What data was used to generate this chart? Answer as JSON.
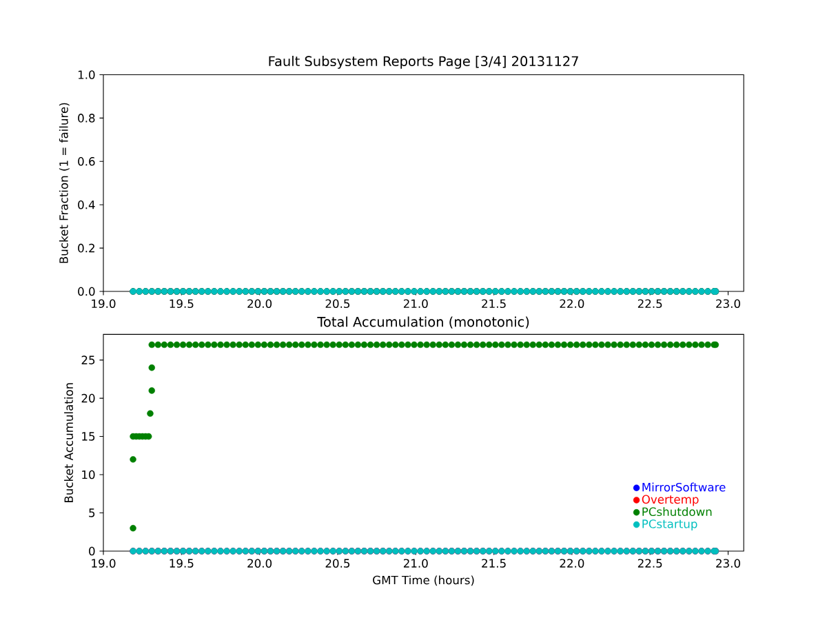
{
  "chart_data": [
    {
      "type": "scatter",
      "title": "Fault Subsystem Reports Page [3/4] 20131127",
      "ylabel": "Bucket Fraction (1 = failure)",
      "marker": "circle",
      "legend": false,
      "grid": false,
      "xlim": [
        19.0,
        23.1
      ],
      "ylim": [
        0,
        1
      ],
      "xticks": [
        {
          "value": 19.0,
          "label": "19.0"
        },
        {
          "value": 19.5,
          "label": "19.5"
        },
        {
          "value": 20.0,
          "label": "20.0"
        },
        {
          "value": 20.5,
          "label": "20.5"
        },
        {
          "value": 21.0,
          "label": "21.0"
        },
        {
          "value": 21.5,
          "label": "21.5"
        },
        {
          "value": 22.0,
          "label": "22.0"
        },
        {
          "value": 22.5,
          "label": "22.5"
        },
        {
          "value": 23.0,
          "label": "23.0"
        }
      ],
      "yticks": [
        {
          "value": 0,
          "label": "0.0"
        },
        {
          "value": 0.2,
          "label": "0.2"
        },
        {
          "value": 0.4,
          "label": "0.4"
        },
        {
          "value": 0.6,
          "label": "0.6"
        },
        {
          "value": 0.8,
          "label": "0.8"
        },
        {
          "value": 1,
          "label": "1.0"
        }
      ],
      "x": [
        19.19,
        19.23,
        19.27,
        19.31,
        19.35,
        19.39,
        19.43,
        19.47,
        19.51,
        19.55,
        19.59,
        19.63,
        19.67,
        19.71,
        19.75,
        19.79,
        19.83,
        19.87,
        19.91,
        19.95,
        19.99,
        20.03,
        20.07,
        20.11,
        20.15,
        20.19,
        20.23,
        20.27,
        20.31,
        20.35,
        20.39,
        20.43,
        20.47,
        20.51,
        20.55,
        20.59,
        20.63,
        20.67,
        20.71,
        20.75,
        20.79,
        20.83,
        20.87,
        20.91,
        20.95,
        20.99,
        21.03,
        21.07,
        21.11,
        21.15,
        21.19,
        21.23,
        21.27,
        21.31,
        21.35,
        21.39,
        21.43,
        21.47,
        21.51,
        21.55,
        21.59,
        21.63,
        21.67,
        21.71,
        21.75,
        21.79,
        21.83,
        21.87,
        21.91,
        21.95,
        21.99,
        22.03,
        22.07,
        22.11,
        22.15,
        22.19,
        22.23,
        22.27,
        22.31,
        22.35,
        22.39,
        22.43,
        22.47,
        22.51,
        22.55,
        22.59,
        22.63,
        22.67,
        22.71,
        22.75,
        22.79,
        22.83,
        22.87,
        22.91,
        22.92
      ],
      "series": [
        {
          "color": "#0000ff",
          "values": [
            0,
            0,
            0,
            0,
            0,
            0,
            0,
            0,
            0,
            0,
            0,
            0,
            0,
            0,
            0,
            0,
            0,
            0,
            0,
            0,
            0,
            0,
            0,
            0,
            0,
            0,
            0,
            0,
            0,
            0,
            0,
            0,
            0,
            0,
            0,
            0,
            0,
            0,
            0,
            0,
            0,
            0,
            0,
            0,
            0,
            0,
            0,
            0,
            0,
            0,
            0,
            0,
            0,
            0,
            0,
            0,
            0,
            0,
            0,
            0,
            0,
            0,
            0,
            0,
            0,
            0,
            0,
            0,
            0,
            0,
            0,
            0,
            0,
            0,
            0,
            0,
            0,
            0,
            0,
            0,
            0,
            0,
            0,
            0,
            0,
            0,
            0,
            0,
            0,
            0,
            0,
            0,
            0,
            0,
            0
          ]
        },
        {
          "color": "#ff0000",
          "values": [
            0,
            0,
            0,
            0,
            0,
            0,
            0,
            0,
            0,
            0,
            0,
            0,
            0,
            0,
            0,
            0,
            0,
            0,
            0,
            0,
            0,
            0,
            0,
            0,
            0,
            0,
            0,
            0,
            0,
            0,
            0,
            0,
            0,
            0,
            0,
            0,
            0,
            0,
            0,
            0,
            0,
            0,
            0,
            0,
            0,
            0,
            0,
            0,
            0,
            0,
            0,
            0,
            0,
            0,
            0,
            0,
            0,
            0,
            0,
            0,
            0,
            0,
            0,
            0,
            0,
            0,
            0,
            0,
            0,
            0,
            0,
            0,
            0,
            0,
            0,
            0,
            0,
            0,
            0,
            0,
            0,
            0,
            0,
            0,
            0,
            0,
            0,
            0,
            0,
            0,
            0,
            0,
            0,
            0,
            0
          ]
        },
        {
          "color": "#008000",
          "values": [
            0,
            0,
            0,
            0,
            0,
            0,
            0,
            0,
            0,
            0,
            0,
            0,
            0,
            0,
            0,
            0,
            0,
            0,
            0,
            0,
            0,
            0,
            0,
            0,
            0,
            0,
            0,
            0,
            0,
            0,
            0,
            0,
            0,
            0,
            0,
            0,
            0,
            0,
            0,
            0,
            0,
            0,
            0,
            0,
            0,
            0,
            0,
            0,
            0,
            0,
            0,
            0,
            0,
            0,
            0,
            0,
            0,
            0,
            0,
            0,
            0,
            0,
            0,
            0,
            0,
            0,
            0,
            0,
            0,
            0,
            0,
            0,
            0,
            0,
            0,
            0,
            0,
            0,
            0,
            0,
            0,
            0,
            0,
            0,
            0,
            0,
            0,
            0,
            0,
            0,
            0,
            0,
            0,
            0,
            0
          ]
        },
        {
          "color": "#00bfbf",
          "values": [
            0,
            0,
            0,
            0,
            0,
            0,
            0,
            0,
            0,
            0,
            0,
            0,
            0,
            0,
            0,
            0,
            0,
            0,
            0,
            0,
            0,
            0,
            0,
            0,
            0,
            0,
            0,
            0,
            0,
            0,
            0,
            0,
            0,
            0,
            0,
            0,
            0,
            0,
            0,
            0,
            0,
            0,
            0,
            0,
            0,
            0,
            0,
            0,
            0,
            0,
            0,
            0,
            0,
            0,
            0,
            0,
            0,
            0,
            0,
            0,
            0,
            0,
            0,
            0,
            0,
            0,
            0,
            0,
            0,
            0,
            0,
            0,
            0,
            0,
            0,
            0,
            0,
            0,
            0,
            0,
            0,
            0,
            0,
            0,
            0,
            0,
            0,
            0,
            0,
            0,
            0,
            0,
            0,
            0,
            0
          ]
        }
      ]
    },
    {
      "type": "scatter",
      "title": "Total Accumulation (monotonic)",
      "xlabel": "GMT Time (hours)",
      "ylabel": "Bucket Accumulation",
      "marker": "circle",
      "legend": "bottom right",
      "grid": false,
      "xlim": [
        19.0,
        23.1
      ],
      "ylim": [
        0,
        28.35
      ],
      "xticks": [
        {
          "value": 19.0,
          "label": "19.0"
        },
        {
          "value": 19.5,
          "label": "19.5"
        },
        {
          "value": 20.0,
          "label": "20.0"
        },
        {
          "value": 20.5,
          "label": "20.5"
        },
        {
          "value": 21.0,
          "label": "21.0"
        },
        {
          "value": 21.5,
          "label": "21.5"
        },
        {
          "value": 22.0,
          "label": "22.0"
        },
        {
          "value": 22.5,
          "label": "22.5"
        },
        {
          "value": 23.0,
          "label": "23.0"
        }
      ],
      "yticks": [
        0,
        5,
        10,
        15,
        20,
        25
      ],
      "x": [
        19.19,
        19.23,
        19.27,
        19.31,
        19.35,
        19.39,
        19.43,
        19.47,
        19.51,
        19.55,
        19.59,
        19.63,
        19.67,
        19.71,
        19.75,
        19.79,
        19.83,
        19.87,
        19.91,
        19.95,
        19.99,
        20.03,
        20.07,
        20.11,
        20.15,
        20.19,
        20.23,
        20.27,
        20.31,
        20.35,
        20.39,
        20.43,
        20.47,
        20.51,
        20.55,
        20.59,
        20.63,
        20.67,
        20.71,
        20.75,
        20.79,
        20.83,
        20.87,
        20.91,
        20.95,
        20.99,
        21.03,
        21.07,
        21.11,
        21.15,
        21.19,
        21.23,
        21.27,
        21.31,
        21.35,
        21.39,
        21.43,
        21.47,
        21.51,
        21.55,
        21.59,
        21.63,
        21.67,
        21.71,
        21.75,
        21.79,
        21.83,
        21.87,
        21.91,
        21.95,
        21.99,
        22.03,
        22.07,
        22.11,
        22.15,
        22.19,
        22.23,
        22.27,
        22.31,
        22.35,
        22.39,
        22.43,
        22.47,
        22.51,
        22.55,
        22.59,
        22.63,
        22.67,
        22.71,
        22.75,
        22.79,
        22.83,
        22.87,
        22.91,
        22.92
      ],
      "series": [
        {
          "name": "MirrorSoftware",
          "color": "#0000ff",
          "values": [
            0,
            0,
            0,
            0,
            0,
            0,
            0,
            0,
            0,
            0,
            0,
            0,
            0,
            0,
            0,
            0,
            0,
            0,
            0,
            0,
            0,
            0,
            0,
            0,
            0,
            0,
            0,
            0,
            0,
            0,
            0,
            0,
            0,
            0,
            0,
            0,
            0,
            0,
            0,
            0,
            0,
            0,
            0,
            0,
            0,
            0,
            0,
            0,
            0,
            0,
            0,
            0,
            0,
            0,
            0,
            0,
            0,
            0,
            0,
            0,
            0,
            0,
            0,
            0,
            0,
            0,
            0,
            0,
            0,
            0,
            0,
            0,
            0,
            0,
            0,
            0,
            0,
            0,
            0,
            0,
            0,
            0,
            0,
            0,
            0,
            0,
            0,
            0,
            0,
            0,
            0,
            0,
            0,
            0,
            0
          ]
        },
        {
          "name": "Overtemp",
          "color": "#ff0000",
          "values": [
            0,
            0,
            0,
            0,
            0,
            0,
            0,
            0,
            0,
            0,
            0,
            0,
            0,
            0,
            0,
            0,
            0,
            0,
            0,
            0,
            0,
            0,
            0,
            0,
            0,
            0,
            0,
            0,
            0,
            0,
            0,
            0,
            0,
            0,
            0,
            0,
            0,
            0,
            0,
            0,
            0,
            0,
            0,
            0,
            0,
            0,
            0,
            0,
            0,
            0,
            0,
            0,
            0,
            0,
            0,
            0,
            0,
            0,
            0,
            0,
            0,
            0,
            0,
            0,
            0,
            0,
            0,
            0,
            0,
            0,
            0,
            0,
            0,
            0,
            0,
            0,
            0,
            0,
            0,
            0,
            0,
            0,
            0,
            0,
            0,
            0,
            0,
            0,
            0,
            0,
            0,
            0,
            0,
            0,
            0
          ]
        },
        {
          "name": "PCshutdown",
          "color": "#008000",
          "x": [
            19.19,
            19.19,
            19.19,
            19.21,
            19.23,
            19.25,
            19.27,
            19.29,
            19.3,
            19.31,
            19.31,
            19.31,
            19.35,
            19.39,
            19.43,
            19.47,
            19.51,
            19.55,
            19.59,
            19.63,
            19.67,
            19.71,
            19.75,
            19.79,
            19.83,
            19.87,
            19.91,
            19.95,
            19.99,
            20.03,
            20.07,
            20.11,
            20.15,
            20.19,
            20.23,
            20.27,
            20.31,
            20.35,
            20.39,
            20.43,
            20.47,
            20.51,
            20.55,
            20.59,
            20.63,
            20.67,
            20.71,
            20.75,
            20.79,
            20.83,
            20.87,
            20.91,
            20.95,
            20.99,
            21.03,
            21.07,
            21.11,
            21.15,
            21.19,
            21.23,
            21.27,
            21.31,
            21.35,
            21.39,
            21.43,
            21.47,
            21.51,
            21.55,
            21.59,
            21.63,
            21.67,
            21.71,
            21.75,
            21.79,
            21.83,
            21.87,
            21.91,
            21.95,
            21.99,
            22.03,
            22.07,
            22.11,
            22.15,
            22.19,
            22.23,
            22.27,
            22.31,
            22.35,
            22.39,
            22.43,
            22.47,
            22.51,
            22.55,
            22.59,
            22.63,
            22.67,
            22.71,
            22.75,
            22.79,
            22.83,
            22.87,
            22.91,
            22.92
          ],
          "values": [
            3,
            12,
            15,
            15,
            15,
            15,
            15,
            15,
            18,
            21,
            24,
            27,
            27,
            27,
            27,
            27,
            27,
            27,
            27,
            27,
            27,
            27,
            27,
            27,
            27,
            27,
            27,
            27,
            27,
            27,
            27,
            27,
            27,
            27,
            27,
            27,
            27,
            27,
            27,
            27,
            27,
            27,
            27,
            27,
            27,
            27,
            27,
            27,
            27,
            27,
            27,
            27,
            27,
            27,
            27,
            27,
            27,
            27,
            27,
            27,
            27,
            27,
            27,
            27,
            27,
            27,
            27,
            27,
            27,
            27,
            27,
            27,
            27,
            27,
            27,
            27,
            27,
            27,
            27,
            27,
            27,
            27,
            27,
            27,
            27,
            27,
            27,
            27,
            27,
            27,
            27,
            27,
            27,
            27,
            27,
            27,
            27,
            27,
            27,
            27,
            27,
            27,
            27
          ]
        },
        {
          "name": "PCstartup",
          "color": "#00bfbf",
          "values": [
            0,
            0,
            0,
            0,
            0,
            0,
            0,
            0,
            0,
            0,
            0,
            0,
            0,
            0,
            0,
            0,
            0,
            0,
            0,
            0,
            0,
            0,
            0,
            0,
            0,
            0,
            0,
            0,
            0,
            0,
            0,
            0,
            0,
            0,
            0,
            0,
            0,
            0,
            0,
            0,
            0,
            0,
            0,
            0,
            0,
            0,
            0,
            0,
            0,
            0,
            0,
            0,
            0,
            0,
            0,
            0,
            0,
            0,
            0,
            0,
            0,
            0,
            0,
            0,
            0,
            0,
            0,
            0,
            0,
            0,
            0,
            0,
            0,
            0,
            0,
            0,
            0,
            0,
            0,
            0,
            0,
            0,
            0,
            0,
            0,
            0,
            0,
            0,
            0,
            0,
            0,
            0,
            0,
            0,
            0
          ]
        }
      ]
    }
  ]
}
